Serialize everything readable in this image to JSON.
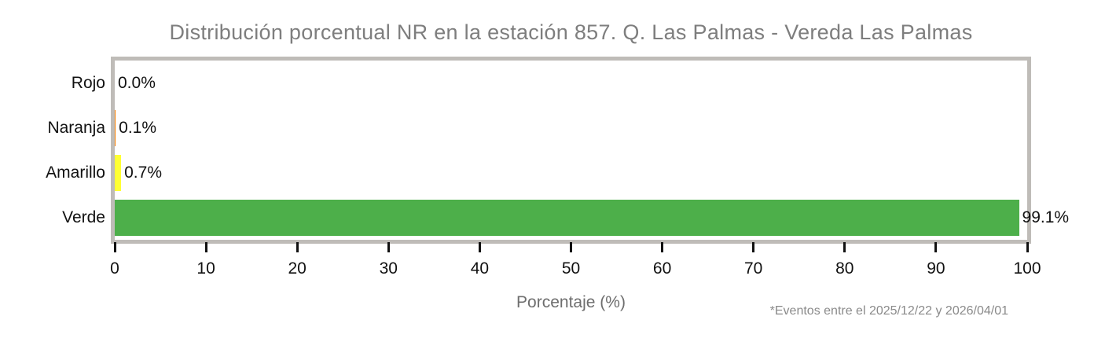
{
  "chart_data": {
    "type": "bar",
    "orientation": "horizontal",
    "title": "Distribución porcentual NR en la estación 857. Q. Las Palmas - Vereda Las Palmas",
    "categories": [
      "Rojo",
      "Naranja",
      "Amarillo",
      "Verde"
    ],
    "values": [
      0.0,
      0.1,
      0.7,
      99.1
    ],
    "value_labels": [
      "0.0%",
      "0.1%",
      "0.7%",
      "99.1%"
    ],
    "bar_colors": [
      "#e41a1c",
      "#ff7f00",
      "#ffff33",
      "#4daf4a"
    ],
    "xlabel": "Porcentaje (%)",
    "ylabel": "",
    "xlim": [
      0,
      100
    ],
    "xticks": [
      0,
      10,
      20,
      30,
      40,
      50,
      60,
      70,
      80,
      90,
      100
    ],
    "grid": false,
    "legend": "none",
    "footnote": "*Eventos entre el 2025/12/22 y 2026/04/01"
  },
  "colors": {
    "plot_border": "#bfbcb8",
    "title_text": "#7e7e7e",
    "axis_label_text": "#6e6e6e",
    "footnote_text": "#8a8a8a",
    "tick_mark": "#111111",
    "tick_text": "#111111",
    "category_text": "#111111",
    "bar_value_text": "#111111",
    "background": "#ffffff"
  }
}
